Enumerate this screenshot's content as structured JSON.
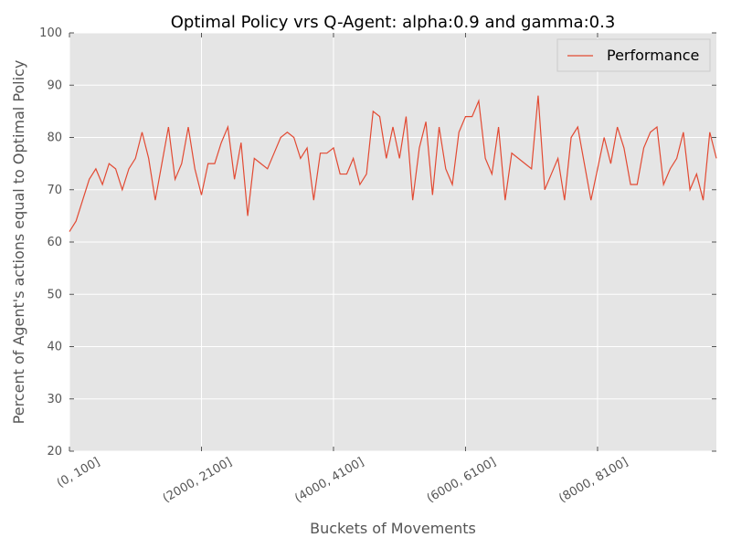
{
  "chart_data": {
    "type": "line",
    "title": "Optimal Policy vrs Q-Agent: alpha:0.9 and gamma:0.3",
    "xlabel": "Buckets of Movements",
    "ylabel": "Percent of Agent's actions equal to Optimal Policy",
    "ylim": [
      20,
      100
    ],
    "yticks": [
      20,
      30,
      40,
      50,
      60,
      70,
      80,
      90,
      100
    ],
    "xlim": [
      0,
      98
    ],
    "xticks": [
      {
        "index": 0,
        "label": "(0, 100]"
      },
      {
        "index": 20,
        "label": "(2000, 2100]"
      },
      {
        "index": 40,
        "label": "(4000, 4100]"
      },
      {
        "index": 60,
        "label": "(6000, 6100]"
      },
      {
        "index": 80,
        "label": "(8000, 8100]"
      }
    ],
    "grid": true,
    "legend": "top-right",
    "series": [
      {
        "name": "Performance",
        "color": "#E24A33",
        "values": [
          62,
          64,
          68,
          72,
          74,
          71,
          75,
          74,
          70,
          74,
          76,
          81,
          76,
          68,
          75,
          82,
          72,
          75,
          82,
          74,
          69,
          75,
          75,
          79,
          82,
          72,
          79,
          65,
          76,
          75,
          74,
          77,
          80,
          81,
          80,
          76,
          78,
          68,
          77,
          77,
          78,
          73,
          73,
          76,
          71,
          73,
          85,
          84,
          76,
          82,
          76,
          84,
          68,
          78,
          83,
          69,
          82,
          74,
          71,
          81,
          84,
          84,
          87,
          76,
          73,
          82,
          68,
          77,
          76,
          75,
          74,
          88,
          70,
          73,
          76,
          68,
          80,
          82,
          75,
          68,
          74,
          80,
          75,
          82,
          78,
          71,
          71,
          78,
          81,
          82,
          71,
          74,
          76,
          81,
          70,
          73,
          68,
          81,
          76
        ]
      }
    ]
  }
}
